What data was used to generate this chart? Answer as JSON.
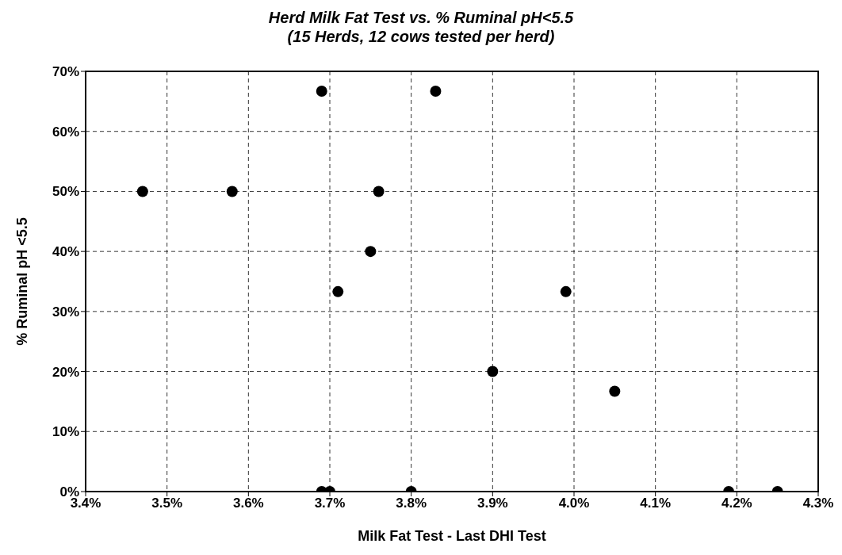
{
  "chart_data": {
    "type": "scatter",
    "title": "Herd Milk Fat Test vs. % Ruminal pH<5.5",
    "subtitle": "(15 Herds, 12 cows tested per herd)",
    "xlabel": "Milk Fat Test - Last DHI Test",
    "ylabel": "% Ruminal pH <5.5",
    "x": [
      3.47,
      3.58,
      3.69,
      3.83,
      3.76,
      3.75,
      3.71,
      3.99,
      3.9,
      4.05,
      3.69,
      3.7,
      3.8,
      4.19,
      4.25
    ],
    "values": [
      50,
      50,
      66.7,
      66.7,
      50,
      40,
      33.3,
      33.3,
      20,
      16.7,
      0,
      0,
      0,
      0,
      0
    ],
    "color": "#000000",
    "marker": "circle",
    "grid": true,
    "xlim": [
      3.4,
      4.3
    ],
    "xticks": [
      {
        "value": 3.4,
        "label": "3.4%"
      },
      {
        "value": 3.5,
        "label": "3.5%"
      },
      {
        "value": 3.6,
        "label": "3.6%"
      },
      {
        "value": 3.7,
        "label": "3.7%"
      },
      {
        "value": 3.8,
        "label": "3.8%"
      },
      {
        "value": 3.9,
        "label": "3.9%"
      },
      {
        "value": 4.0,
        "label": "4.0%"
      },
      {
        "value": 4.1,
        "label": "4.1%"
      },
      {
        "value": 4.2,
        "label": "4.2%"
      },
      {
        "value": 4.3,
        "label": "4.3%"
      }
    ],
    "ylim": [
      0,
      70
    ],
    "yticks": [
      {
        "value": 0,
        "label": "0%"
      },
      {
        "value": 10,
        "label": "10%"
      },
      {
        "value": 20,
        "label": "20%"
      },
      {
        "value": 30,
        "label": "30%"
      },
      {
        "value": 40,
        "label": "40%"
      },
      {
        "value": 50,
        "label": "50%"
      },
      {
        "value": 60,
        "label": "60%"
      },
      {
        "value": 70,
        "label": "70%"
      }
    ]
  }
}
